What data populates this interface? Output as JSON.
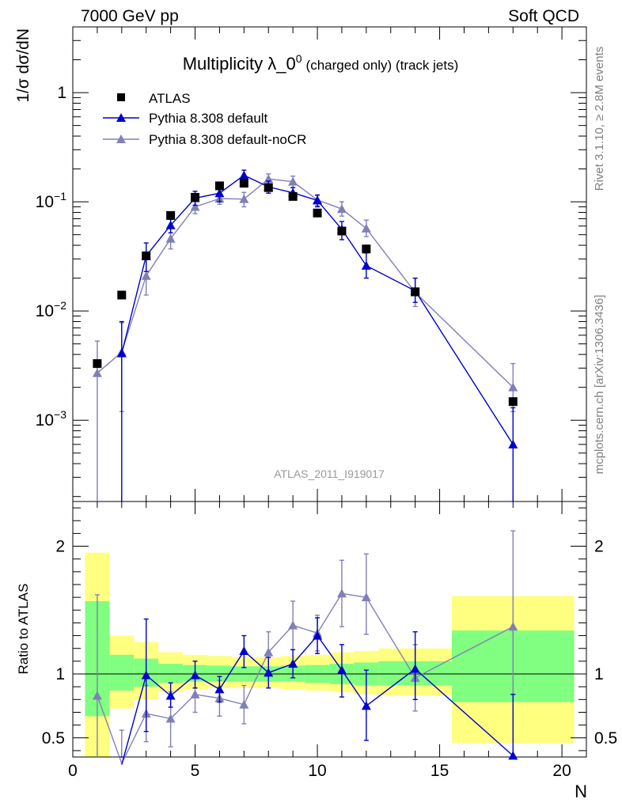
{
  "header": {
    "left": "7000 GeV pp",
    "right": "Soft QCD"
  },
  "side": {
    "rivet": "Rivet 3.1.10, ≥ 2.8M events",
    "mcplots": "mcplots.cern.ch [arXiv:1306.3436]"
  },
  "chart_data": [
    {
      "type": "scatter",
      "title": "Multiplicity λ_0",
      "title_sup": "0",
      "title_suffix": "(charged only) (track jets)",
      "analysis_label": "ATLAS_2011_I919017",
      "ylabel": "1/σ dσ/dN",
      "yscale": "log",
      "ylim": [
        0.00018,
        4.0
      ],
      "xlim": [
        0,
        21
      ],
      "yticks": [
        {
          "v": 1,
          "base": "1",
          "exp": ""
        },
        {
          "v": 0.1,
          "base": "10",
          "exp": "−1"
        },
        {
          "v": 0.01,
          "base": "10",
          "exp": "−2"
        },
        {
          "v": 0.001,
          "base": "10",
          "exp": "−3"
        }
      ],
      "legend_position": "top-left",
      "series": [
        {
          "name": "ATLAS",
          "color": "#000000",
          "marker": "square",
          "x": [
            1,
            2,
            3,
            4,
            5,
            6,
            7,
            8,
            9,
            10,
            11,
            12,
            14,
            18
          ],
          "y": [
            0.0033,
            0.014,
            0.032,
            0.075,
            0.11,
            0.14,
            0.148,
            0.135,
            0.112,
            0.079,
            0.054,
            0.037,
            0.015,
            0.00148
          ]
        },
        {
          "name": "Pythia 8.308 default",
          "color": "#0000cc",
          "marker": "triangle",
          "x": [
            1,
            2,
            3,
            4,
            5,
            6,
            7,
            8,
            9,
            10,
            11,
            12,
            14,
            18
          ],
          "y": [
            null,
            0.0041,
            0.032,
            0.061,
            0.108,
            0.12,
            0.175,
            0.137,
            0.121,
            0.103,
            0.056,
            0.026,
            0.0153,
            0.0006
          ],
          "err_lo": [
            null,
            1e-05,
            0.023,
            0.052,
            0.093,
            0.1,
            0.152,
            0.12,
            0.108,
            0.09,
            0.045,
            0.02,
            0.012,
            1e-05
          ],
          "err_hi": [
            null,
            0.008,
            0.042,
            0.069,
            0.125,
            0.135,
            0.195,
            0.155,
            0.135,
            0.115,
            0.066,
            0.034,
            0.02,
            0.0013
          ]
        },
        {
          "name": "Pythia 8.308 default-noCR",
          "color": "#8080b8",
          "marker": "triangle",
          "x": [
            1,
            2,
            3,
            4,
            5,
            6,
            7,
            8,
            9,
            10,
            11,
            12,
            14,
            18
          ],
          "y": [
            0.0027,
            0.0042,
            0.021,
            0.046,
            0.09,
            0.107,
            0.106,
            0.162,
            0.153,
            0.104,
            0.086,
            0.057,
            0.0148,
            0.002
          ],
          "err_lo": [
            1e-05,
            0.0012,
            0.014,
            0.037,
            0.078,
            0.095,
            0.09,
            0.145,
            0.135,
            0.092,
            0.074,
            0.048,
            0.011,
            0.0012
          ],
          "err_hi": [
            0.0053,
            0.0078,
            0.03,
            0.057,
            0.102,
            0.12,
            0.122,
            0.18,
            0.172,
            0.116,
            0.1,
            0.068,
            0.02,
            0.0033
          ]
        }
      ]
    },
    {
      "type": "scatter",
      "ylabel": "Ratio to ATLAS",
      "xlabel": "N",
      "xlim": [
        0,
        21
      ],
      "ylim": [
        0.35,
        2.35
      ],
      "xticks": [
        0,
        5,
        10,
        15,
        20
      ],
      "yticks": [
        0.5,
        1,
        2
      ],
      "bands": [
        {
          "x0": 0.5,
          "x1": 1.5,
          "y_lo": 0.35,
          "y_hi": 1.95,
          "g_lo": 0.67,
          "g_hi": 1.57
        },
        {
          "x0": 1.5,
          "x1": 2.5,
          "y_lo": 0.73,
          "y_hi": 1.3,
          "g_lo": 0.87,
          "g_hi": 1.15
        },
        {
          "x0": 2.5,
          "x1": 3.5,
          "y_lo": 0.8,
          "y_hi": 1.25,
          "g_lo": 0.9,
          "g_hi": 1.12
        },
        {
          "x0": 3.5,
          "x1": 4.5,
          "y_lo": 0.86,
          "y_hi": 1.17,
          "g_lo": 0.93,
          "g_hi": 1.08
        },
        {
          "x0": 4.5,
          "x1": 5.5,
          "y_lo": 0.88,
          "y_hi": 1.15,
          "g_lo": 0.94,
          "g_hi": 1.07
        },
        {
          "x0": 5.5,
          "x1": 6.5,
          "y_lo": 0.89,
          "y_hi": 1.14,
          "g_lo": 0.94,
          "g_hi": 1.065
        },
        {
          "x0": 6.5,
          "x1": 7.5,
          "y_lo": 0.89,
          "y_hi": 1.13,
          "g_lo": 0.94,
          "g_hi": 1.06
        },
        {
          "x0": 7.5,
          "x1": 8.5,
          "y_lo": 0.89,
          "y_hi": 1.13,
          "g_lo": 0.94,
          "g_hi": 1.06
        },
        {
          "x0": 8.5,
          "x1": 9.5,
          "y_lo": 0.88,
          "y_hi": 1.14,
          "g_lo": 0.94,
          "g_hi": 1.065
        },
        {
          "x0": 9.5,
          "x1": 10.5,
          "y_lo": 0.87,
          "y_hi": 1.15,
          "g_lo": 0.93,
          "g_hi": 1.07
        },
        {
          "x0": 10.5,
          "x1": 11.5,
          "y_lo": 0.86,
          "y_hi": 1.17,
          "g_lo": 0.92,
          "g_hi": 1.08
        },
        {
          "x0": 11.5,
          "x1": 12.5,
          "y_lo": 0.84,
          "y_hi": 1.18,
          "g_lo": 0.91,
          "g_hi": 1.09
        },
        {
          "x0": 12.5,
          "x1": 15.5,
          "y_lo": 0.83,
          "y_hi": 1.2,
          "g_lo": 0.91,
          "g_hi": 1.1
        },
        {
          "x0": 15.5,
          "x1": 20.5,
          "y_lo": 0.46,
          "y_hi": 1.61,
          "g_lo": 0.78,
          "g_hi": 1.34
        }
      ],
      "series": [
        {
          "name": "Pythia 8.308 default",
          "color": "#0000cc",
          "marker": "triangle",
          "x": [
            2,
            3,
            4,
            5,
            6,
            7,
            8,
            9,
            10,
            11,
            12,
            14,
            18
          ],
          "y": [
            0.29,
            0.99,
            0.83,
            0.99,
            0.88,
            1.18,
            1.01,
            1.08,
            1.3,
            1.03,
            0.75,
            1.04,
            0.36
          ],
          "err_lo": [
            0.29,
            0.55,
            0.74,
            0.89,
            0.78,
            1.05,
            0.89,
            0.97,
            1.16,
            0.82,
            0.48,
            0.8,
            0.35
          ],
          "err_hi": [
            0.29,
            1.43,
            0.93,
            1.1,
            0.98,
            1.3,
            1.13,
            1.19,
            1.44,
            1.23,
            1.03,
            1.33,
            0.84
          ]
        },
        {
          "name": "Pythia 8.308 default-noCR",
          "color": "#8080b8",
          "marker": "triangle",
          "x": [
            1,
            2,
            3,
            4,
            5,
            6,
            7,
            8,
            9,
            10,
            11,
            12,
            14,
            18
          ],
          "y": [
            0.83,
            0.3,
            0.69,
            0.65,
            0.84,
            0.81,
            0.76,
            1.17,
            1.38,
            1.32,
            1.63,
            1.6,
            0.97,
            1.37
          ],
          "err_lo": [
            0.35,
            0.3,
            0.47,
            0.43,
            0.7,
            0.67,
            0.61,
            1.01,
            1.19,
            1.18,
            1.37,
            1.31,
            0.71,
            0.84
          ],
          "err_hi": [
            1.62,
            0.56,
            0.91,
            0.86,
            0.98,
            0.95,
            0.91,
            1.33,
            1.57,
            1.46,
            1.89,
            1.94,
            1.23,
            2.12
          ]
        }
      ]
    }
  ]
}
